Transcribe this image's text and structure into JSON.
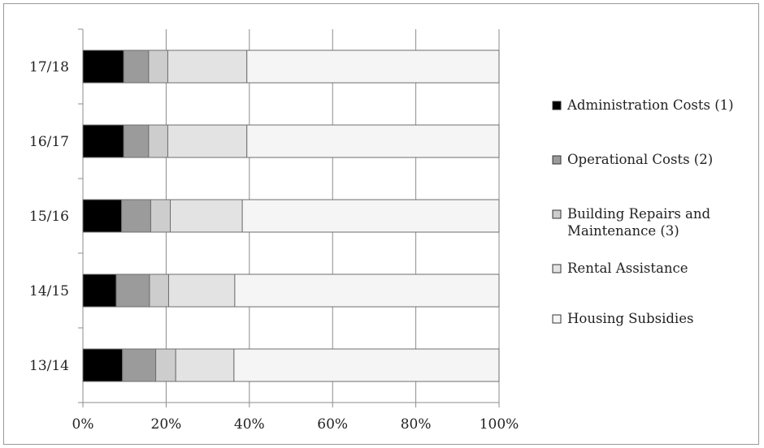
{
  "chart_data": {
    "type": "bar",
    "orientation": "horizontal",
    "stacking": "percent",
    "categories": [
      "17/18",
      "16/17",
      "15/16",
      "14/15",
      "13/14"
    ],
    "series": [
      {
        "name": "Administration Costs (1)",
        "color": "#000000",
        "values": [
          9.8,
          9.8,
          9.3,
          8.0,
          9.5
        ]
      },
      {
        "name": "Operational Costs (2)",
        "color": "#9b9b9b",
        "values": [
          6.0,
          6.0,
          7.0,
          8.0,
          8.0
        ]
      },
      {
        "name": "Building Repairs and Maintenance (3)",
        "color": "#cdcdcd",
        "values": [
          4.6,
          4.6,
          4.7,
          4.6,
          4.8
        ]
      },
      {
        "name": "Rental Assistance",
        "color": "#e3e3e3",
        "values": [
          19.0,
          19.0,
          17.3,
          15.9,
          14.0
        ]
      },
      {
        "name": "Housing Subsidies",
        "color": "#f5f5f5",
        "values": [
          60.6,
          60.6,
          61.7,
          63.5,
          63.7
        ]
      }
    ],
    "x_ticks": [
      "0%",
      "20%",
      "40%",
      "60%",
      "80%",
      "100%"
    ],
    "xlim": [
      0,
      100
    ],
    "grid": true,
    "legend_position": "right",
    "title": "",
    "xlabel": "",
    "ylabel": ""
  }
}
